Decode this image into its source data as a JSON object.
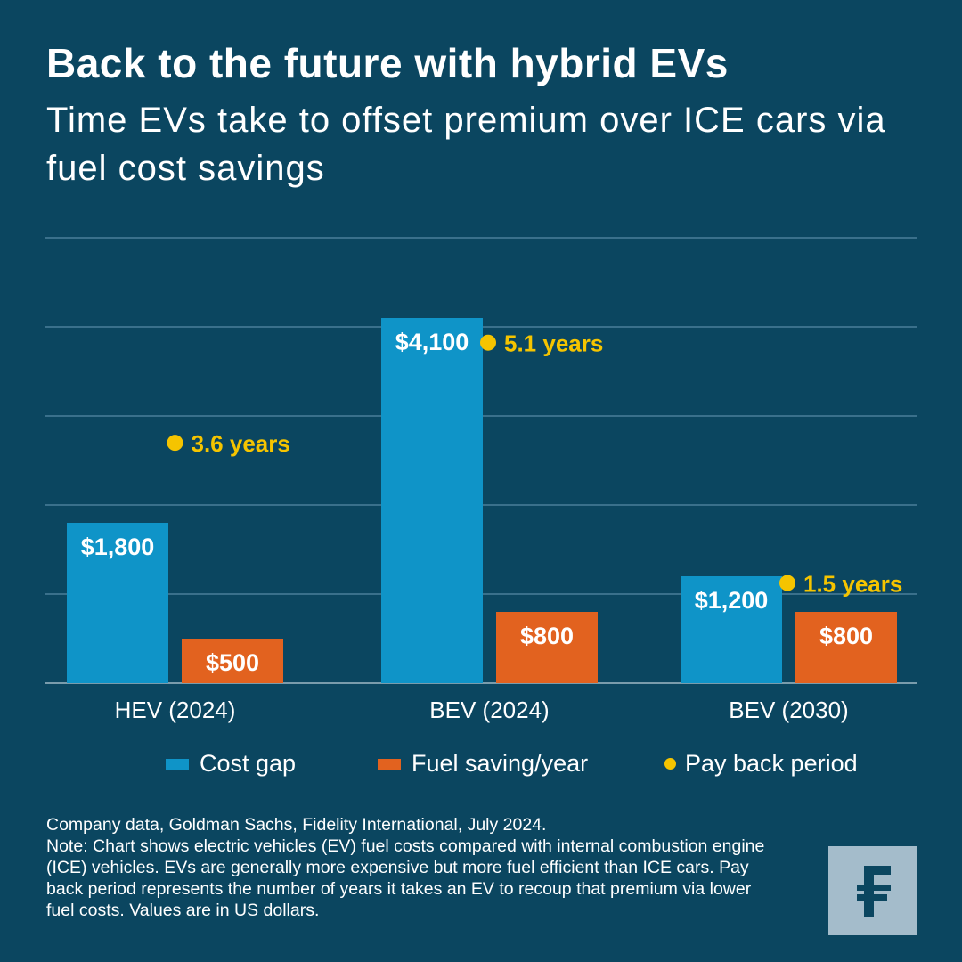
{
  "title": "Back to the future with hybrid EVs",
  "subtitle": "Time EVs take to offset premium over ICE cars via fuel cost savings",
  "chart_data": {
    "type": "bar",
    "categories": [
      "HEV (2024)",
      "BEV (2024)",
      "BEV (2030)"
    ],
    "series": [
      {
        "name": "Cost gap",
        "values": [
          1800,
          4100,
          1200
        ],
        "labels": [
          "$1,800",
          "$4,100",
          "$1,200"
        ],
        "color": "#0f94c8"
      },
      {
        "name": "Fuel saving/year",
        "values": [
          500,
          800,
          800
        ],
        "labels": [
          "$500",
          "$800",
          "$800"
        ],
        "color": "#e2621f"
      },
      {
        "name": "Pay back period",
        "type": "dot",
        "values": [
          3.6,
          5.1,
          1.5
        ],
        "labels": [
          "3.6 years",
          "5.1 years",
          "1.5 years"
        ],
        "color": "#f5c400"
      }
    ],
    "ylim": [
      0,
      5000
    ],
    "ylim_secondary_years": [
      0,
      6.67
    ],
    "grid": true,
    "legend": "bottom"
  },
  "source": "Company data, Goldman Sachs, Fidelity International, July 2024.",
  "note": "Note: Chart shows electric vehicles (EV) fuel costs compared with internal combustion engine (ICE) vehicles. EVs are generally more expensive but more fuel efficient than ICE cars. Pay back period represents the number of years it takes an EV to recoup that premium via lower fuel costs. Values are in US dollars.",
  "logo": "F"
}
